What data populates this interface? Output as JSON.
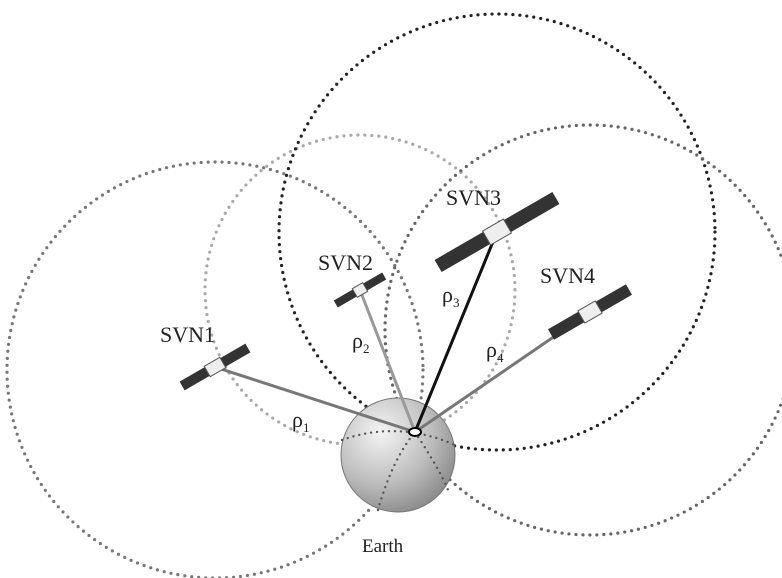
{
  "satellites": [
    {
      "label": "SVN1",
      "range": {
        "symbol": "ρ",
        "subscript": "1"
      }
    },
    {
      "label": "SVN2",
      "range": {
        "symbol": "ρ",
        "subscript": "2"
      }
    },
    {
      "label": "SVN3",
      "range": {
        "symbol": "ρ",
        "subscript": "3"
      }
    },
    {
      "label": "SVN4",
      "range": {
        "symbol": "ρ",
        "subscript": "4"
      }
    }
  ],
  "earth": {
    "label": "Earth"
  }
}
